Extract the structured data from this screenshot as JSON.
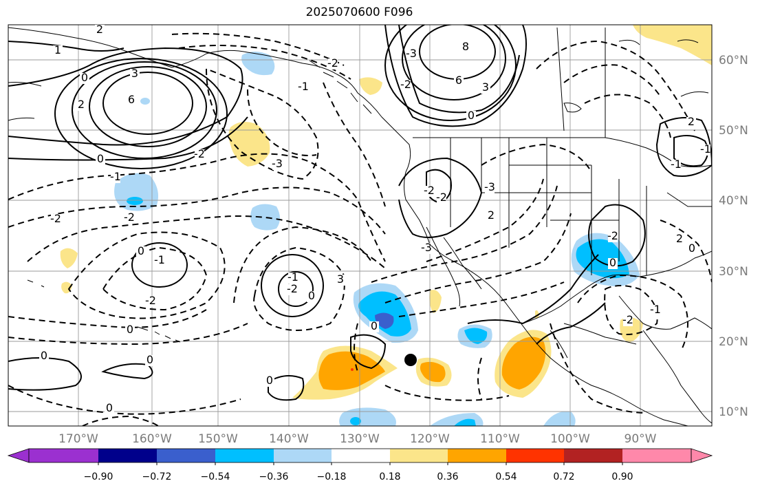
{
  "title": "2025070600 F096",
  "map": {
    "lat_ticks": [
      "60°N",
      "50°N",
      "40°N",
      "30°N",
      "20°N",
      "10°N"
    ],
    "lon_ticks": [
      "170°W",
      "160°W",
      "150°W",
      "140°W",
      "130°W",
      "120°W",
      "110°W",
      "100°W",
      "90°W"
    ],
    "contour_labels": [
      "1",
      "2",
      "0",
      "3",
      "6",
      "2",
      "-1",
      "-2",
      "-2",
      "0",
      "-3",
      "-1",
      "-2",
      "-2",
      "0",
      "-1",
      "-2",
      "0",
      "0",
      "0",
      "0",
      "0",
      "0",
      "0",
      "3",
      "-3",
      "-2",
      "-3",
      "6",
      "8",
      "3",
      "0",
      "2",
      "2",
      "-1",
      "-1",
      "-2",
      "-2",
      "-3",
      "-2",
      "-1",
      "-2",
      "0",
      "2",
      "0",
      "-2",
      "-1"
    ],
    "marker": "storm-position-dot"
  },
  "colorbar": {
    "ticks": [
      "−0.90",
      "−0.72",
      "−0.54",
      "−0.36",
      "−0.18",
      "0.18",
      "0.36",
      "0.54",
      "0.72",
      "0.90"
    ],
    "colors": [
      "#9b30d0",
      "#00008b",
      "#3a5fcd",
      "#00bfff",
      "#add8f6",
      "#ffffff",
      "#fbe58a",
      "#ffa500",
      "#ff3300",
      "#b22222",
      "#ff88aa"
    ]
  }
}
